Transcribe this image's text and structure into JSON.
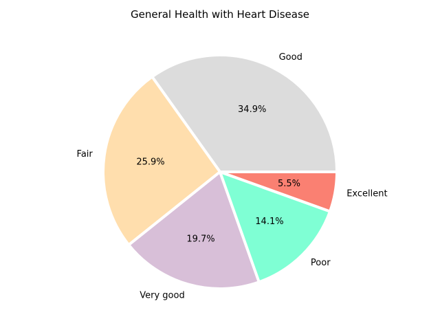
{
  "chart_data": {
    "type": "pie",
    "title": "General Health with Heart Disease",
    "start_angle_deg": 0,
    "direction": "counterclockwise",
    "slices": [
      {
        "label": "Good",
        "value": 34.9,
        "pct_label": "34.9%",
        "color": "#dcdcdc"
      },
      {
        "label": "Fair",
        "value": 25.9,
        "pct_label": "25.9%",
        "color": "#ffdead"
      },
      {
        "label": "Very good",
        "value": 19.7,
        "pct_label": "19.7%",
        "color": "#d8bfd8"
      },
      {
        "label": "Poor",
        "value": 14.1,
        "pct_label": "14.1%",
        "color": "#7fffd4"
      },
      {
        "label": "Excellent",
        "value": 5.5,
        "pct_label": "5.5%",
        "color": "#fa8072"
      }
    ],
    "edge_color": "#ffffff"
  }
}
